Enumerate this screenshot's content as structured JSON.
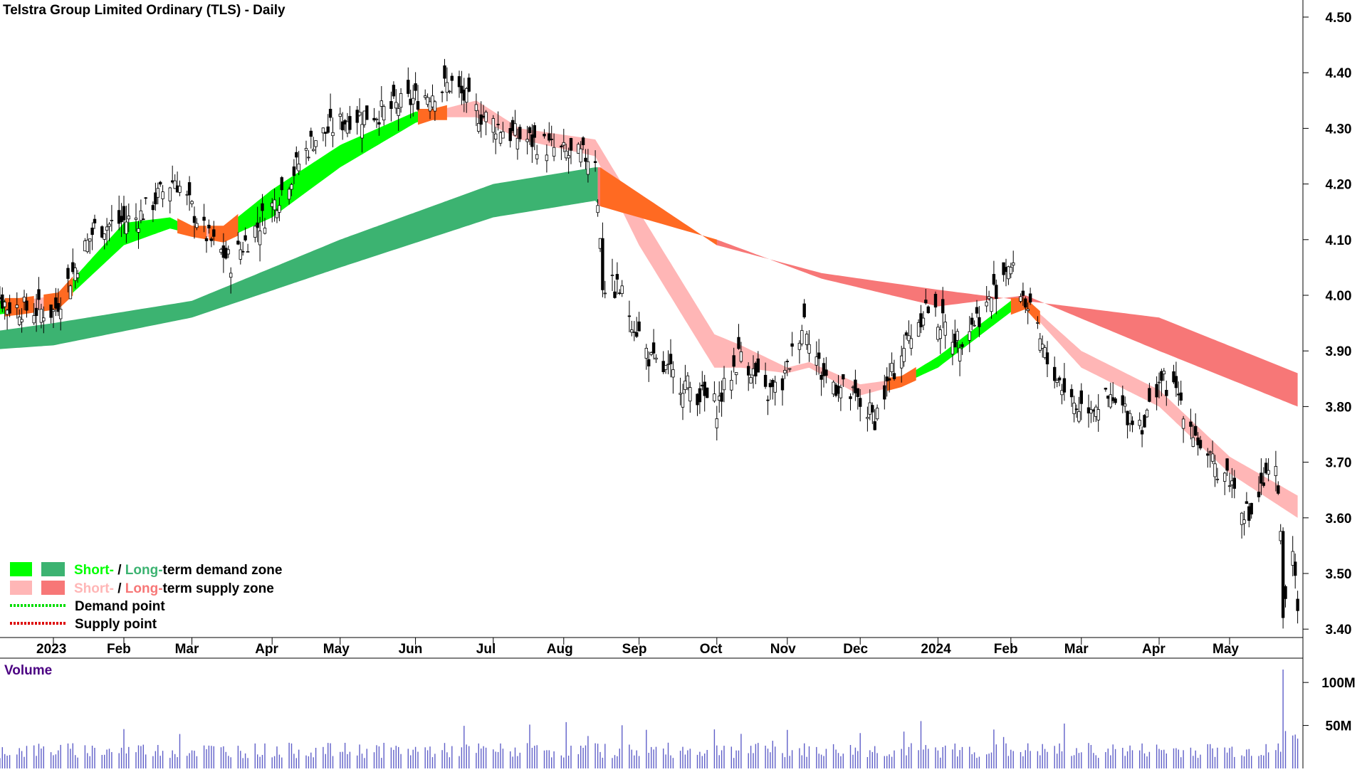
{
  "chart_data": {
    "type": "candlestick",
    "title": "Telstra Group Limited Ordinary (TLS) - Daily",
    "price_axis": {
      "ticks": [
        "4.50",
        "4.40",
        "4.30",
        "4.20",
        "4.10",
        "4.00",
        "3.90",
        "3.80",
        "3.70",
        "3.60",
        "3.50",
        "3.40"
      ],
      "ylim": [
        3.35,
        4.52
      ]
    },
    "x_axis": {
      "ticks": [
        "2023",
        "Feb",
        "Mar",
        "Apr",
        "May",
        "Jun",
        "Jul",
        "Aug",
        "Sep",
        "Oct",
        "Nov",
        "Dec",
        "2024",
        "Feb",
        "Mar",
        "Apr",
        "May"
      ],
      "tick_dates": [
        "2023-01-03",
        "2023-02-01",
        "2023-03-01",
        "2023-04-03",
        "2023-05-01",
        "2023-06-01",
        "2023-07-03",
        "2023-08-01",
        "2023-09-01",
        "2023-10-03",
        "2023-11-01",
        "2023-12-01",
        "2024-01-02",
        "2024-02-01",
        "2024-03-01",
        "2024-04-02",
        "2024-05-01"
      ]
    },
    "close_anchors": [
      {
        "date": "2022-12-01",
        "value": 4.06
      },
      {
        "date": "2022-12-15",
        "value": 3.98
      },
      {
        "date": "2023-01-03",
        "value": 3.97
      },
      {
        "date": "2023-01-20",
        "value": 4.12
      },
      {
        "date": "2023-02-07",
        "value": 4.14
      },
      {
        "date": "2023-02-22",
        "value": 4.21
      },
      {
        "date": "2023-03-08",
        "value": 4.1
      },
      {
        "date": "2023-03-17",
        "value": 4.06
      },
      {
        "date": "2023-04-03",
        "value": 4.16
      },
      {
        "date": "2023-04-20",
        "value": 4.28
      },
      {
        "date": "2023-05-05",
        "value": 4.32
      },
      {
        "date": "2023-05-19",
        "value": 4.33
      },
      {
        "date": "2023-06-05",
        "value": 4.36
      },
      {
        "date": "2023-06-16",
        "value": 4.38
      },
      {
        "date": "2023-06-26",
        "value": 4.33
      },
      {
        "date": "2023-07-10",
        "value": 4.29
      },
      {
        "date": "2023-07-24",
        "value": 4.27
      },
      {
        "date": "2023-08-04",
        "value": 4.25
      },
      {
        "date": "2023-08-14",
        "value": 4.25
      },
      {
        "date": "2023-08-17",
        "value": 4.02
      },
      {
        "date": "2023-08-24",
        "value": 4.01
      },
      {
        "date": "2023-09-06",
        "value": 3.88
      },
      {
        "date": "2023-09-20",
        "value": 3.84
      },
      {
        "date": "2023-10-03",
        "value": 3.8
      },
      {
        "date": "2023-10-13",
        "value": 3.9
      },
      {
        "date": "2023-10-23",
        "value": 3.82
      },
      {
        "date": "2023-10-30",
        "value": 3.84
      },
      {
        "date": "2023-11-08",
        "value": 3.96
      },
      {
        "date": "2023-11-15",
        "value": 3.86
      },
      {
        "date": "2023-11-27",
        "value": 3.82
      },
      {
        "date": "2023-12-07",
        "value": 3.78
      },
      {
        "date": "2023-12-18",
        "value": 3.9
      },
      {
        "date": "2023-12-28",
        "value": 3.98
      },
      {
        "date": "2024-01-10",
        "value": 3.92
      },
      {
        "date": "2024-01-22",
        "value": 3.98
      },
      {
        "date": "2024-01-31",
        "value": 4.06
      },
      {
        "date": "2024-02-07",
        "value": 3.99
      },
      {
        "date": "2024-02-16",
        "value": 3.88
      },
      {
        "date": "2024-02-28",
        "value": 3.8
      },
      {
        "date": "2024-03-12",
        "value": 3.81
      },
      {
        "date": "2024-03-27",
        "value": 3.77
      },
      {
        "date": "2024-04-02",
        "value": 3.85
      },
      {
        "date": "2024-04-10",
        "value": 3.82
      },
      {
        "date": "2024-04-22",
        "value": 3.7
      },
      {
        "date": "2024-04-30",
        "value": 3.68
      },
      {
        "date": "2024-05-09",
        "value": 3.6
      },
      {
        "date": "2024-05-15",
        "value": 3.66
      },
      {
        "date": "2024-05-20",
        "value": 3.68
      },
      {
        "date": "2024-05-22",
        "value": 3.58
      },
      {
        "date": "2024-05-23",
        "value": 3.44
      },
      {
        "date": "2024-05-27",
        "value": 3.52
      },
      {
        "date": "2024-05-29",
        "value": 3.45
      }
    ],
    "short_term_zone": [
      {
        "date": "2022-12-01",
        "top": 3.99,
        "bottom": 3.96,
        "state": "demand"
      },
      {
        "date": "2022-12-20",
        "top": 3.99,
        "bottom": 3.97,
        "state": "supply"
      },
      {
        "date": "2023-01-05",
        "top": 4.0,
        "bottom": 3.98,
        "state": "demand"
      },
      {
        "date": "2023-02-01",
        "top": 4.13,
        "bottom": 4.09,
        "state": "demand"
      },
      {
        "date": "2023-02-20",
        "top": 4.14,
        "bottom": 4.12,
        "state": "demand"
      },
      {
        "date": "2023-03-01",
        "top": 4.12,
        "bottom": 4.11,
        "state": "supply"
      },
      {
        "date": "2023-03-14",
        "top": 4.12,
        "bottom": 4.1,
        "state": "demand"
      },
      {
        "date": "2023-04-03",
        "top": 4.19,
        "bottom": 4.14,
        "state": "demand"
      },
      {
        "date": "2023-05-01",
        "top": 4.27,
        "bottom": 4.23,
        "state": "demand"
      },
      {
        "date": "2023-06-01",
        "top": 4.33,
        "bottom": 4.31,
        "state": "demand"
      },
      {
        "date": "2023-06-08",
        "top": 4.33,
        "bottom": 4.32,
        "state": "supply"
      },
      {
        "date": "2023-06-26",
        "top": 4.35,
        "bottom": 4.32,
        "state": "supply"
      },
      {
        "date": "2023-07-14",
        "top": 4.3,
        "bottom": 4.28,
        "state": "supply"
      },
      {
        "date": "2023-08-14",
        "top": 4.28,
        "bottom": 4.25,
        "state": "supply"
      },
      {
        "date": "2023-09-01",
        "top": 4.15,
        "bottom": 4.09,
        "state": "supply"
      },
      {
        "date": "2023-10-02",
        "top": 3.93,
        "bottom": 3.87,
        "state": "supply"
      },
      {
        "date": "2023-10-13",
        "top": 3.91,
        "bottom": 3.87,
        "state": "supply"
      },
      {
        "date": "2023-11-01",
        "top": 3.87,
        "bottom": 3.86,
        "state": "supply"
      },
      {
        "date": "2023-11-10",
        "top": 3.88,
        "bottom": 3.87,
        "state": "supply"
      },
      {
        "date": "2023-12-01",
        "top": 3.84,
        "bottom": 3.82,
        "state": "supply"
      },
      {
        "date": "2023-12-18",
        "top": 3.85,
        "bottom": 3.84,
        "state": "demand"
      },
      {
        "date": "2024-01-02",
        "top": 3.89,
        "bottom": 3.87,
        "state": "demand"
      },
      {
        "date": "2024-02-01",
        "top": 3.99,
        "bottom": 3.97,
        "state": "demand"
      },
      {
        "date": "2024-02-07",
        "top": 3.99,
        "bottom": 3.98,
        "state": "supply"
      },
      {
        "date": "2024-03-01",
        "top": 3.9,
        "bottom": 3.87,
        "state": "supply"
      },
      {
        "date": "2024-04-02",
        "top": 3.83,
        "bottom": 3.8,
        "state": "supply"
      },
      {
        "date": "2024-05-01",
        "top": 3.71,
        "bottom": 3.68,
        "state": "supply"
      },
      {
        "date": "2024-05-29",
        "top": 3.64,
        "bottom": 3.6,
        "state": "supply"
      }
    ],
    "long_term_zone": [
      {
        "date": "2022-12-01",
        "top": 3.93,
        "bottom": 3.9,
        "state": "demand"
      },
      {
        "date": "2023-01-03",
        "top": 3.95,
        "bottom": 3.91,
        "state": "demand"
      },
      {
        "date": "2023-03-01",
        "top": 3.99,
        "bottom": 3.96,
        "state": "demand"
      },
      {
        "date": "2023-05-01",
        "top": 4.1,
        "bottom": 4.05,
        "state": "demand"
      },
      {
        "date": "2023-07-03",
        "top": 4.2,
        "bottom": 4.14,
        "state": "demand"
      },
      {
        "date": "2023-08-14",
        "top": 4.23,
        "bottom": 4.17,
        "state": "demand"
      },
      {
        "date": "2023-08-16",
        "top": 4.23,
        "bottom": 4.16,
        "state": "supply"
      },
      {
        "date": "2023-10-03",
        "top": 4.09,
        "bottom": 4.1,
        "state": "supply"
      },
      {
        "date": "2023-11-15",
        "top": 4.04,
        "bottom": 4.03,
        "state": "supply"
      },
      {
        "date": "2024-01-02",
        "top": 4.01,
        "bottom": 3.98,
        "state": "supply"
      },
      {
        "date": "2024-02-07",
        "top": 3.99,
        "bottom": 4.0,
        "state": "supply"
      },
      {
        "date": "2024-04-02",
        "top": 3.96,
        "bottom": 3.9,
        "state": "supply"
      },
      {
        "date": "2024-05-29",
        "top": 3.86,
        "bottom": 3.8,
        "state": "supply"
      }
    ],
    "volume": {
      "label": "Volume",
      "ticks": [
        "100M",
        "50M"
      ],
      "ylim": [
        0,
        120
      ],
      "unit": "M",
      "typical": 20,
      "spike": {
        "date": "2024-05-23",
        "value": 115
      }
    },
    "legend": [
      {
        "short": "Short-",
        "separator": " / ",
        "long": "Long-",
        "suffix": "term demand zone",
        "colors": [
          "#00ff00",
          "#3cb371"
        ]
      },
      {
        "short": "Short-",
        "separator": " / ",
        "long": "Long-",
        "suffix": "term supply zone",
        "colors": [
          "#ffb6b6",
          "#f77777"
        ]
      },
      {
        "line": "Demand point",
        "color": "#00dd00"
      },
      {
        "line": "Supply point",
        "color": "#dd0000"
      }
    ],
    "colors": {
      "short_demand": "#00ff00",
      "long_demand": "#3cb371",
      "short_supply": "#ffb6b6",
      "long_supply": "#f77777",
      "transition": "#ff6a22",
      "volume_bar": "#5f5fc8",
      "volume_label": "#4b0082",
      "candle": "#000000"
    }
  }
}
